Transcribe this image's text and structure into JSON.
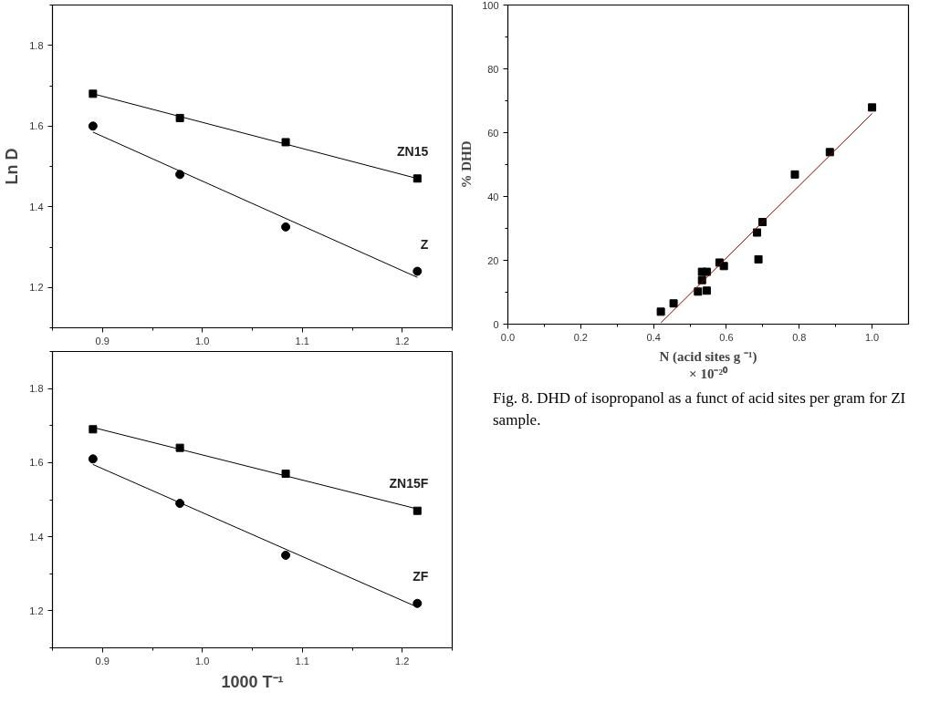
{
  "chart_data": [
    {
      "type": "scatter",
      "ylabel": "Ln D",
      "xlim": [
        0.85,
        1.25
      ],
      "ylim": [
        1.1,
        1.9
      ],
      "xticks": [
        {
          "value": 0.85,
          "label": null
        },
        0.9,
        {
          "value": 0.95,
          "label": null
        },
        {
          "value": 1.0,
          "label": "1.0"
        },
        {
          "value": 1.05,
          "label": null
        },
        1.1,
        {
          "value": 1.15,
          "label": null
        },
        1.2,
        {
          "value": 1.25,
          "label": null
        }
      ],
      "yticks": [
        {
          "value": 1.1,
          "label": null
        },
        1.2,
        {
          "value": 1.3,
          "label": null
        },
        1.4,
        {
          "value": 1.5,
          "label": null
        },
        1.6,
        {
          "value": 1.7,
          "label": null
        },
        1.8,
        {
          "value": 1.9,
          "label": null
        }
      ],
      "series": [
        {
          "name": "ZN15",
          "marker": "square",
          "color": "#000000",
          "x": [
            0.8905,
            0.9775,
            1.0834,
            1.2151
          ],
          "values": [
            1.68,
            1.62,
            1.56,
            1.47
          ]
        },
        {
          "name": "Z",
          "marker": "circle",
          "color": "#000000",
          "x": [
            0.8905,
            0.9775,
            1.0834,
            1.2151
          ],
          "values": [
            1.6,
            1.48,
            1.35,
            1.24
          ]
        },
        {
          "type": "line",
          "color": "#000000",
          "x": [
            0.8905,
            1.2151
          ],
          "values": [
            1.68,
            1.47
          ]
        },
        {
          "type": "line",
          "color": "#000000",
          "x": [
            0.8905,
            1.2151
          ],
          "values": [
            1.585,
            1.225
          ]
        }
      ]
    },
    {
      "type": "scatter",
      "xlabel": "1000 T⁻¹",
      "xlim": [
        0.85,
        1.25
      ],
      "ylim": [
        1.1,
        1.9
      ],
      "xticks": [
        {
          "value": 0.85,
          "label": null
        },
        0.9,
        {
          "value": 0.95,
          "label": null
        },
        {
          "value": 1.0,
          "label": "1.0"
        },
        {
          "value": 1.05,
          "label": null
        },
        1.1,
        {
          "value": 1.15,
          "label": null
        },
        1.2,
        {
          "value": 1.25,
          "label": null
        }
      ],
      "yticks": [
        {
          "value": 1.1,
          "label": null
        },
        1.2,
        {
          "value": 1.3,
          "label": null
        },
        1.4,
        {
          "value": 1.5,
          "label": null
        },
        1.6,
        {
          "value": 1.7,
          "label": null
        },
        1.8,
        {
          "value": 1.9,
          "label": null
        }
      ],
      "series": [
        {
          "name": "ZN15F",
          "marker": "square",
          "color": "#000000",
          "x": [
            0.8905,
            0.9775,
            1.0834,
            1.2151
          ],
          "values": [
            1.69,
            1.64,
            1.57,
            1.47
          ]
        },
        {
          "name": "ZF",
          "marker": "circle",
          "color": "#000000",
          "x": [
            0.8905,
            0.9775,
            1.0834,
            1.2151
          ],
          "values": [
            1.61,
            1.49,
            1.35,
            1.22
          ]
        },
        {
          "type": "line",
          "color": "#000000",
          "x": [
            0.8905,
            1.2151
          ],
          "values": [
            1.695,
            1.475
          ]
        },
        {
          "type": "line",
          "color": "#000000",
          "x": [
            0.8905,
            1.2151
          ],
          "values": [
            1.595,
            1.21
          ]
        }
      ]
    },
    {
      "type": "scatter",
      "xlabel": "N (acid sites g ⁻¹)\n× 10⁻²⁰",
      "ylabel": "% DHD",
      "xlim": [
        0,
        1.1
      ],
      "ylim": [
        0,
        100
      ],
      "xticks": [
        {
          "value": 0,
          "label": "0.0"
        },
        {
          "value": 0.1,
          "label": null
        },
        0.2,
        {
          "value": 0.3,
          "label": null
        },
        0.4,
        {
          "value": 0.5,
          "label": null
        },
        0.6,
        {
          "value": 0.7,
          "label": null
        },
        0.8,
        {
          "value": 0.9,
          "label": null
        },
        {
          "value": 1.0,
          "label": "1.0"
        }
      ],
      "yticks": [
        0,
        {
          "value": 10,
          "label": null
        },
        20,
        {
          "value": 30,
          "label": null
        },
        40,
        {
          "value": 50,
          "label": null
        },
        60,
        {
          "value": 70,
          "label": null
        },
        80,
        {
          "value": 90,
          "label": null
        },
        100
      ],
      "annotations": [
        "Fig. 8. DHD of isopropanol as a funct of acid sites per gram for ZI sample."
      ],
      "series": [
        {
          "marker": "square",
          "color": "#000000",
          "x": [
            0.42,
            0.455,
            0.522,
            0.533,
            0.533,
            0.546,
            0.546,
            0.581,
            0.593,
            0.684,
            0.688,
            0.699,
            0.788,
            0.884,
            1.0
          ],
          "values": [
            3.9,
            6.5,
            10.2,
            13.8,
            16.4,
            16.4,
            10.5,
            19.3,
            18.2,
            28.7,
            20.3,
            32.0,
            46.9,
            53.9,
            67.9
          ]
        },
        {
          "type": "line",
          "color": "#800000",
          "x": [
            0.42,
            1.0
          ],
          "values": [
            0.4,
            66.0
          ]
        }
      ]
    }
  ]
}
